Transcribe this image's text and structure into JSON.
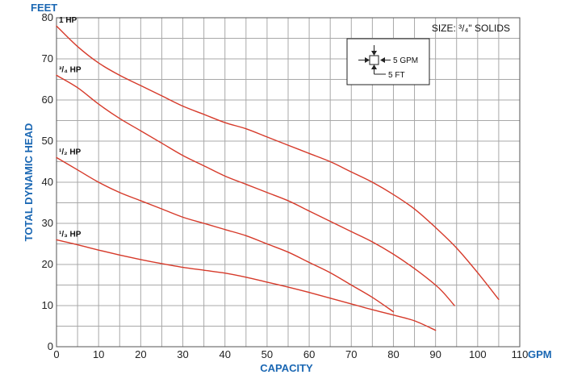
{
  "chart_data": {
    "type": "line",
    "ylabel_top": "FEET",
    "ylabel": "TOTAL DYNAMIC HEAD",
    "xlabel": "CAPACITY",
    "xunit": "GPM",
    "note": "SIZE: ³/₄\" SOLIDS",
    "legend_box": {
      "gpm_label": "5 GPM",
      "ft_label": "5 FT"
    },
    "xlim": [
      0,
      110
    ],
    "ylim": [
      0,
      80
    ],
    "x_ticks": [
      0,
      10,
      20,
      30,
      40,
      50,
      60,
      70,
      80,
      90,
      100,
      110
    ],
    "y_ticks": [
      0,
      10,
      20,
      30,
      40,
      50,
      60,
      70,
      80
    ],
    "grid": true,
    "line_color": "#d63a2a",
    "series": [
      {
        "name": "1 HP",
        "label": "1 HP",
        "x": [
          0,
          5,
          10,
          15,
          20,
          25,
          30,
          35,
          40,
          45,
          50,
          55,
          60,
          65,
          70,
          75,
          80,
          85,
          90,
          95,
          100,
          105
        ],
        "y": [
          78,
          73,
          69,
          66,
          63.5,
          61,
          58.5,
          56.5,
          54.5,
          53,
          51,
          49,
          47,
          45,
          42.5,
          40,
          37,
          33.5,
          29,
          24,
          18,
          11.5
        ]
      },
      {
        "name": "3/4 HP",
        "label": "³/₄ HP",
        "x": [
          0,
          5,
          10,
          15,
          20,
          25,
          30,
          35,
          40,
          45,
          50,
          55,
          60,
          65,
          70,
          75,
          80,
          85,
          90,
          92,
          94.5
        ],
        "y": [
          66,
          63,
          59,
          55.5,
          52.5,
          49.5,
          46.5,
          44,
          41.5,
          39.5,
          37.5,
          35.5,
          33,
          30.5,
          28,
          25.5,
          22.5,
          19,
          15,
          13,
          10
        ]
      },
      {
        "name": "1/2 HP",
        "label": "¹/₂ HP",
        "x": [
          0,
          5,
          10,
          15,
          20,
          25,
          30,
          35,
          40,
          45,
          50,
          55,
          60,
          65,
          70,
          75,
          80
        ],
        "y": [
          46,
          43,
          40,
          37.5,
          35.5,
          33.5,
          31.5,
          30,
          28.5,
          27,
          25,
          23,
          20.5,
          18,
          15,
          12,
          8.5
        ]
      },
      {
        "name": "1/3 HP",
        "label": "¹/₃ HP",
        "x": [
          0,
          5,
          10,
          15,
          20,
          25,
          30,
          35,
          40,
          45,
          50,
          55,
          60,
          65,
          70,
          75,
          80,
          85,
          90
        ],
        "y": [
          26,
          24.8,
          23.5,
          22.3,
          21.2,
          20.2,
          19.3,
          18.6,
          17.9,
          16.9,
          15.7,
          14.5,
          13.2,
          11.8,
          10.4,
          9,
          7.7,
          6.3,
          4
        ]
      }
    ]
  }
}
